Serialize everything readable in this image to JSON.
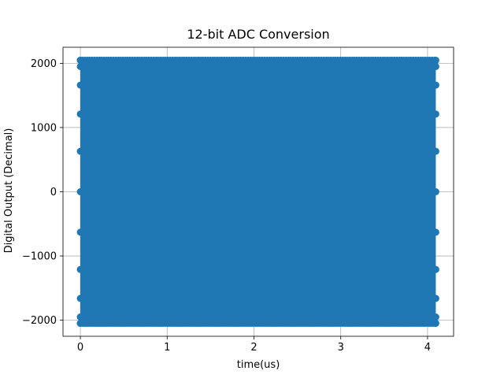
{
  "chart_data": {
    "type": "scatter",
    "title": "12-bit ADC Conversion",
    "xlabel": "time(us)",
    "ylabel": "Digital Output (Decimal)",
    "xlim": [
      -0.2,
      4.3
    ],
    "ylim": [
      -2250,
      2250
    ],
    "xticks": [
      0,
      1,
      2,
      3,
      4
    ],
    "xtick_labels": [
      "0",
      "1",
      "2",
      "3",
      "4"
    ],
    "yticks": [
      -2000,
      -1000,
      0,
      1000,
      2000
    ],
    "ytick_labels": [
      "−2000",
      "−1000",
      "0",
      "1000",
      "2000"
    ],
    "grid": true,
    "color": "#1f77b4",
    "series": [
      {
        "x_range": [
          0,
          4.095
        ],
        "y_range": [
          -2048,
          2047
        ],
        "edge_levels": [
          -2048,
          -1950,
          -1660,
          -1210,
          -630,
          0,
          630,
          1210,
          1660,
          1950,
          2047
        ],
        "sample_period_us": 0.001,
        "sample_count": 4096
      }
    ]
  }
}
